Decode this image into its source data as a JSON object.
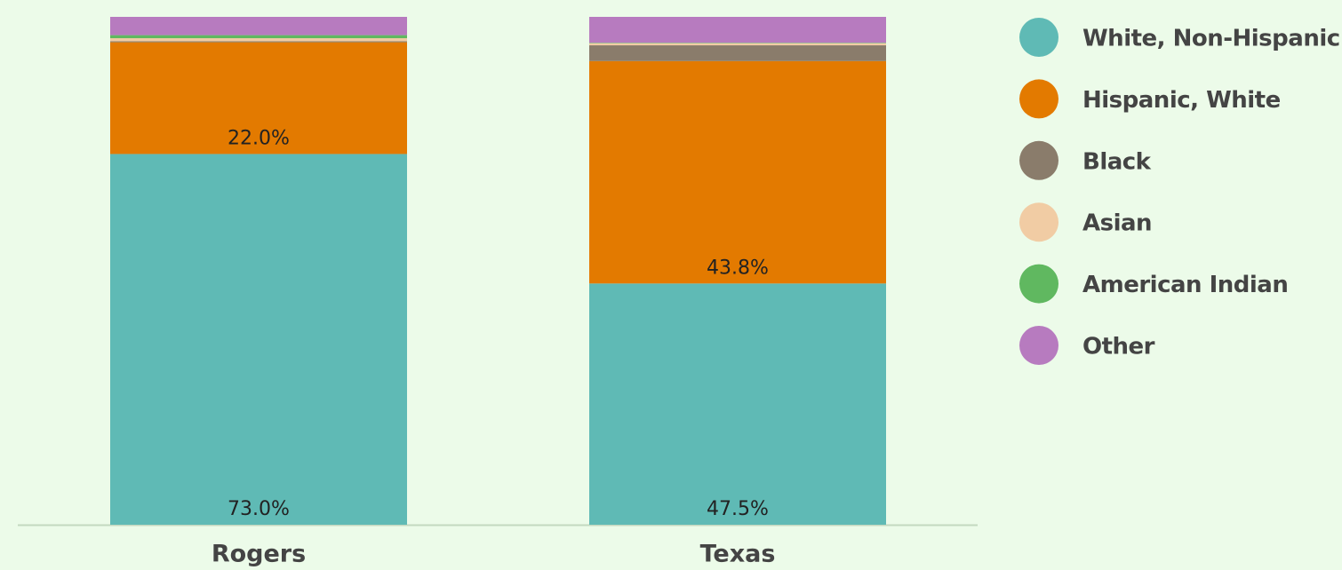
{
  "chart_data": {
    "type": "stacked_bar",
    "categories": [
      "Rogers",
      "Texas"
    ],
    "ylim": [
      0,
      100
    ],
    "series": [
      {
        "name": "White, Non-Hispanic",
        "color": "#5fbab5",
        "values": [
          73.0,
          47.5
        ],
        "value_labels": [
          "73.0%",
          "47.5%"
        ]
      },
      {
        "name": "Hispanic, White",
        "color": "#e37a00",
        "values": [
          22.0,
          43.8
        ],
        "value_labels": [
          "22.0%",
          "43.8%"
        ]
      },
      {
        "name": "Black",
        "color": "#8a7c6b",
        "values": [
          0.2,
          3.1
        ]
      },
      {
        "name": "Asian",
        "color": "#f1cca4",
        "values": [
          0.6,
          0.4
        ]
      },
      {
        "name": "American Indian",
        "color": "#60b860",
        "values": [
          0.6,
          0.1
        ]
      },
      {
        "name": "Other",
        "color": "#b77bbf",
        "values": [
          3.6,
          5.1
        ]
      }
    ],
    "legend": "right"
  }
}
